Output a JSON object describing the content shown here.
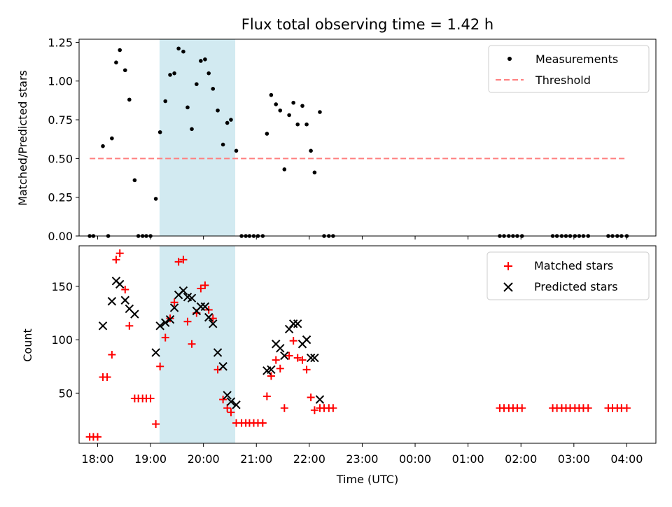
{
  "chart_data": [
    {
      "type": "scatter",
      "title": "Flux total observing time = 1.42 h",
      "xlabel": "",
      "ylabel": "Matched/Predicted stars",
      "ylim": [
        0,
        1.27
      ],
      "yticks": [
        0,
        0.25,
        0.5,
        0.75,
        1.0,
        1.25
      ],
      "ytick_labels": [
        "0.00",
        "0.25",
        "0.50",
        "0.75",
        "1.00",
        "1.25"
      ],
      "xlim_hours": [
        17.65,
        28.55
      ],
      "shaded_span_hours": [
        19.17,
        20.6
      ],
      "shade_color": "#add8e6",
      "legend": {
        "location": "top-right",
        "entries": [
          "Measurements",
          "Threshold"
        ]
      },
      "series": [
        {
          "name": "Measurements",
          "color": "#000000",
          "marker": "dot",
          "points": [
            [
              17.85,
              0
            ],
            [
              17.92,
              0
            ],
            [
              18.1,
              0.58
            ],
            [
              18.2,
              0
            ],
            [
              18.27,
              0.63
            ],
            [
              18.35,
              1.12
            ],
            [
              18.42,
              1.2
            ],
            [
              18.52,
              1.07
            ],
            [
              18.6,
              0.88
            ],
            [
              18.7,
              0.36
            ],
            [
              18.77,
              0
            ],
            [
              18.85,
              0
            ],
            [
              18.92,
              0
            ],
            [
              19.0,
              0
            ],
            [
              19.1,
              0.24
            ],
            [
              19.18,
              0.67
            ],
            [
              19.28,
              0.87
            ],
            [
              19.37,
              1.04
            ],
            [
              19.45,
              1.05
            ],
            [
              19.53,
              1.21
            ],
            [
              19.62,
              1.19
            ],
            [
              19.7,
              0.83
            ],
            [
              19.78,
              0.69
            ],
            [
              19.87,
              0.98
            ],
            [
              19.95,
              1.13
            ],
            [
              20.03,
              1.14
            ],
            [
              20.1,
              1.05
            ],
            [
              20.18,
              0.95
            ],
            [
              20.27,
              0.81
            ],
            [
              20.37,
              0.59
            ],
            [
              20.45,
              0.73
            ],
            [
              20.52,
              0.75
            ],
            [
              20.62,
              0.55
            ],
            [
              20.72,
              0
            ],
            [
              20.8,
              0
            ],
            [
              20.87,
              0
            ],
            [
              20.95,
              0
            ],
            [
              21.03,
              0
            ],
            [
              21.12,
              0
            ],
            [
              21.2,
              0.66
            ],
            [
              21.28,
              0.91
            ],
            [
              21.37,
              0.85
            ],
            [
              21.45,
              0.81
            ],
            [
              21.53,
              0.43
            ],
            [
              21.62,
              0.78
            ],
            [
              21.7,
              0.86
            ],
            [
              21.78,
              0.72
            ],
            [
              21.87,
              0.84
            ],
            [
              21.95,
              0.72
            ],
            [
              22.03,
              0.55
            ],
            [
              22.1,
              0.41
            ],
            [
              22.2,
              0.8
            ],
            [
              22.28,
              0
            ],
            [
              22.37,
              0
            ],
            [
              22.45,
              0
            ],
            [
              25.6,
              0
            ],
            [
              25.68,
              0
            ],
            [
              25.77,
              0
            ],
            [
              25.85,
              0
            ],
            [
              25.93,
              0
            ],
            [
              26.02,
              0
            ],
            [
              26.6,
              0
            ],
            [
              26.68,
              0
            ],
            [
              26.77,
              0
            ],
            [
              26.85,
              0
            ],
            [
              26.93,
              0
            ],
            [
              27.02,
              0
            ],
            [
              27.1,
              0
            ],
            [
              27.18,
              0
            ],
            [
              27.27,
              0
            ],
            [
              27.65,
              0
            ],
            [
              27.73,
              0
            ],
            [
              27.82,
              0
            ],
            [
              27.9,
              0
            ],
            [
              28.0,
              0
            ]
          ]
        },
        {
          "name": "Threshold",
          "color": "#ff7f7f",
          "style": "dashed",
          "x": [
            17.85,
            28.0
          ],
          "y": 0.5
        }
      ]
    },
    {
      "type": "scatter",
      "title": "",
      "xlabel": "Time (UTC)",
      "ylabel": "Count",
      "ylim": [
        3,
        188
      ],
      "yticks": [
        50,
        100,
        150
      ],
      "ytick_labels": [
        "50",
        "100",
        "150"
      ],
      "xlim_hours": [
        17.65,
        28.55
      ],
      "xticks_hours": [
        18,
        19,
        20,
        21,
        22,
        23,
        24,
        25,
        26,
        27,
        28
      ],
      "xtick_labels": [
        "18:00",
        "19:00",
        "20:00",
        "21:00",
        "22:00",
        "23:00",
        "00:00",
        "01:00",
        "02:00",
        "03:00",
        "04:00"
      ],
      "shaded_span_hours": [
        19.17,
        20.6
      ],
      "shade_color": "#add8e6",
      "legend": {
        "location": "top-right",
        "entries": [
          "Matched stars",
          "Predicted stars"
        ]
      },
      "series": [
        {
          "name": "Matched stars",
          "color": "#ff0000",
          "marker": "plus",
          "points": [
            [
              17.85,
              9
            ],
            [
              17.92,
              9
            ],
            [
              18.0,
              9
            ],
            [
              18.1,
              65
            ],
            [
              18.18,
              65
            ],
            [
              18.27,
              86
            ],
            [
              18.35,
              175
            ],
            [
              18.42,
              181
            ],
            [
              18.52,
              147
            ],
            [
              18.6,
              113
            ],
            [
              18.7,
              45
            ],
            [
              18.77,
              45
            ],
            [
              18.85,
              45
            ],
            [
              18.92,
              45
            ],
            [
              19.0,
              45
            ],
            [
              19.1,
              21
            ],
            [
              19.18,
              75
            ],
            [
              19.28,
              102
            ],
            [
              19.37,
              120
            ],
            [
              19.45,
              135
            ],
            [
              19.53,
              173
            ],
            [
              19.62,
              175
            ],
            [
              19.7,
              117
            ],
            [
              19.78,
              96
            ],
            [
              19.87,
              125
            ],
            [
              19.95,
              148
            ],
            [
              20.03,
              151
            ],
            [
              20.1,
              128
            ],
            [
              20.18,
              120
            ],
            [
              20.27,
              72
            ],
            [
              20.37,
              44
            ],
            [
              20.45,
              36
            ],
            [
              20.52,
              32
            ],
            [
              20.62,
              22
            ],
            [
              20.72,
              22
            ],
            [
              20.8,
              22
            ],
            [
              20.87,
              22
            ],
            [
              20.95,
              22
            ],
            [
              21.03,
              22
            ],
            [
              21.12,
              22
            ],
            [
              21.2,
              47
            ],
            [
              21.28,
              66
            ],
            [
              21.37,
              81
            ],
            [
              21.45,
              73
            ],
            [
              21.53,
              36
            ],
            [
              21.62,
              85
            ],
            [
              21.7,
              99
            ],
            [
              21.78,
              83
            ],
            [
              21.87,
              81
            ],
            [
              21.95,
              72
            ],
            [
              22.03,
              46
            ],
            [
              22.1,
              34
            ],
            [
              22.2,
              36
            ],
            [
              22.28,
              36
            ],
            [
              22.37,
              36
            ],
            [
              22.45,
              36
            ],
            [
              25.6,
              36
            ],
            [
              25.68,
              36
            ],
            [
              25.77,
              36
            ],
            [
              25.85,
              36
            ],
            [
              25.93,
              36
            ],
            [
              26.02,
              36
            ],
            [
              26.6,
              36
            ],
            [
              26.68,
              36
            ],
            [
              26.77,
              36
            ],
            [
              26.85,
              36
            ],
            [
              26.93,
              36
            ],
            [
              27.02,
              36
            ],
            [
              27.1,
              36
            ],
            [
              27.18,
              36
            ],
            [
              27.27,
              36
            ],
            [
              27.65,
              36
            ],
            [
              27.73,
              36
            ],
            [
              27.82,
              36
            ],
            [
              27.9,
              36
            ],
            [
              28.0,
              36
            ]
          ]
        },
        {
          "name": "Predicted stars",
          "color": "#000000",
          "marker": "x",
          "points": [
            [
              18.1,
              113
            ],
            [
              18.27,
              136
            ],
            [
              18.35,
              155
            ],
            [
              18.42,
              152
            ],
            [
              18.52,
              137
            ],
            [
              18.6,
              129
            ],
            [
              18.7,
              124
            ],
            [
              19.1,
              88
            ],
            [
              19.18,
              113
            ],
            [
              19.28,
              116
            ],
            [
              19.37,
              119
            ],
            [
              19.45,
              130
            ],
            [
              19.53,
              142
            ],
            [
              19.62,
              146
            ],
            [
              19.7,
              140
            ],
            [
              19.78,
              139
            ],
            [
              19.87,
              127
            ],
            [
              19.95,
              131
            ],
            [
              20.03,
              131
            ],
            [
              20.1,
              121
            ],
            [
              20.18,
              115
            ],
            [
              20.27,
              88
            ],
            [
              20.37,
              75
            ],
            [
              20.45,
              48
            ],
            [
              20.52,
              42
            ],
            [
              20.62,
              39
            ],
            [
              21.2,
              71
            ],
            [
              21.28,
              72
            ],
            [
              21.37,
              96
            ],
            [
              21.45,
              92
            ],
            [
              21.53,
              85
            ],
            [
              21.62,
              110
            ],
            [
              21.7,
              115
            ],
            [
              21.78,
              115
            ],
            [
              21.87,
              96
            ],
            [
              21.95,
              100
            ],
            [
              22.03,
              83
            ],
            [
              22.1,
              83
            ],
            [
              22.2,
              44
            ]
          ]
        }
      ]
    }
  ]
}
